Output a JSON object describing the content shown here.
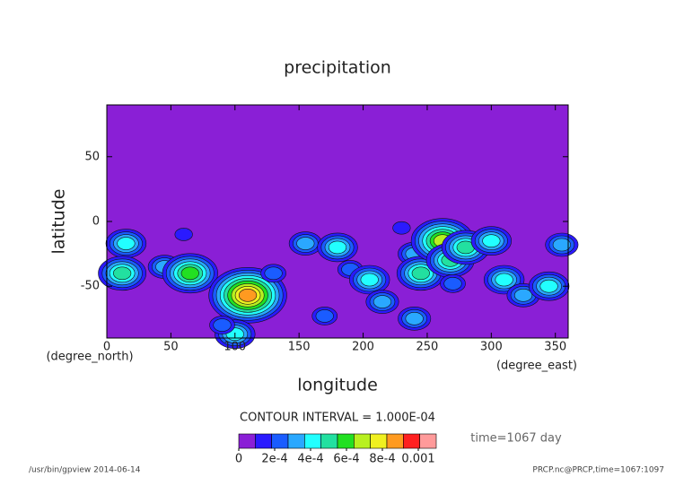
{
  "chart_data": {
    "type": "contour",
    "title": "precipitation",
    "x_label": "longitude",
    "y_label": "latitude",
    "x_unit": "(degree_east)",
    "y_unit": "(degree_north)",
    "xlim": [
      0,
      360
    ],
    "ylim": [
      -90,
      90
    ],
    "xticks": [
      0,
      50,
      100,
      150,
      200,
      250,
      300,
      350
    ],
    "yticks": [
      -50,
      0,
      50
    ],
    "background_color": "#8a1fd6",
    "points": {
      "x": [
        15,
        12,
        45,
        65,
        110,
        100,
        155,
        180,
        190,
        205,
        215,
        240,
        245,
        262,
        268,
        280,
        300,
        310,
        325,
        345,
        355,
        240,
        170,
        90,
        270,
        130,
        230,
        60
      ],
      "y": [
        -17,
        -40,
        -35,
        -40,
        -57,
        -87,
        -17,
        -20,
        -37,
        -45,
        -62,
        -25,
        -40,
        -15,
        -30,
        -20,
        -15,
        -45,
        -57,
        -50,
        -18,
        -75,
        -73,
        -80,
        -48,
        -40,
        -5,
        -10
      ],
      "values": [
        0.0004,
        0.0005,
        0.0003,
        0.0006,
        0.0009,
        0.0004,
        0.0003,
        0.0004,
        0.0002,
        0.0004,
        0.0003,
        0.0003,
        0.0005,
        0.0007,
        0.0005,
        0.0005,
        0.0004,
        0.0004,
        0.0003,
        0.0004,
        0.0003,
        0.0003,
        0.0002,
        0.0002,
        0.0002,
        0.0002,
        0.0001,
        0.0001
      ]
    },
    "contour_interval": "CONTOUR INTERVAL = 1.000E-04",
    "colorbar": {
      "lim": [
        0,
        0.0011
      ],
      "colors": [
        "#8a1fd6",
        "#2a1aff",
        "#1a5cff",
        "#2aa8ff",
        "#22ffff",
        "#22e0a0",
        "#22e022",
        "#b8f020",
        "#f0f020",
        "#ff9a20",
        "#ff2020",
        "#ff9a9a"
      ],
      "ticks": [
        0,
        {
          "value": 0.0002,
          "label": "2e-4"
        },
        {
          "value": 0.0004,
          "label": "4e-4"
        },
        {
          "value": 0.0006,
          "label": "6e-4"
        },
        {
          "value": 0.0008,
          "label": "8e-4"
        },
        0.001
      ]
    },
    "time_label": "time=1067 day",
    "footer_left": "/usr/bin/gpview  2014-06-14",
    "footer_right": "PRCP.nc@PRCP,time=1067:1097"
  }
}
